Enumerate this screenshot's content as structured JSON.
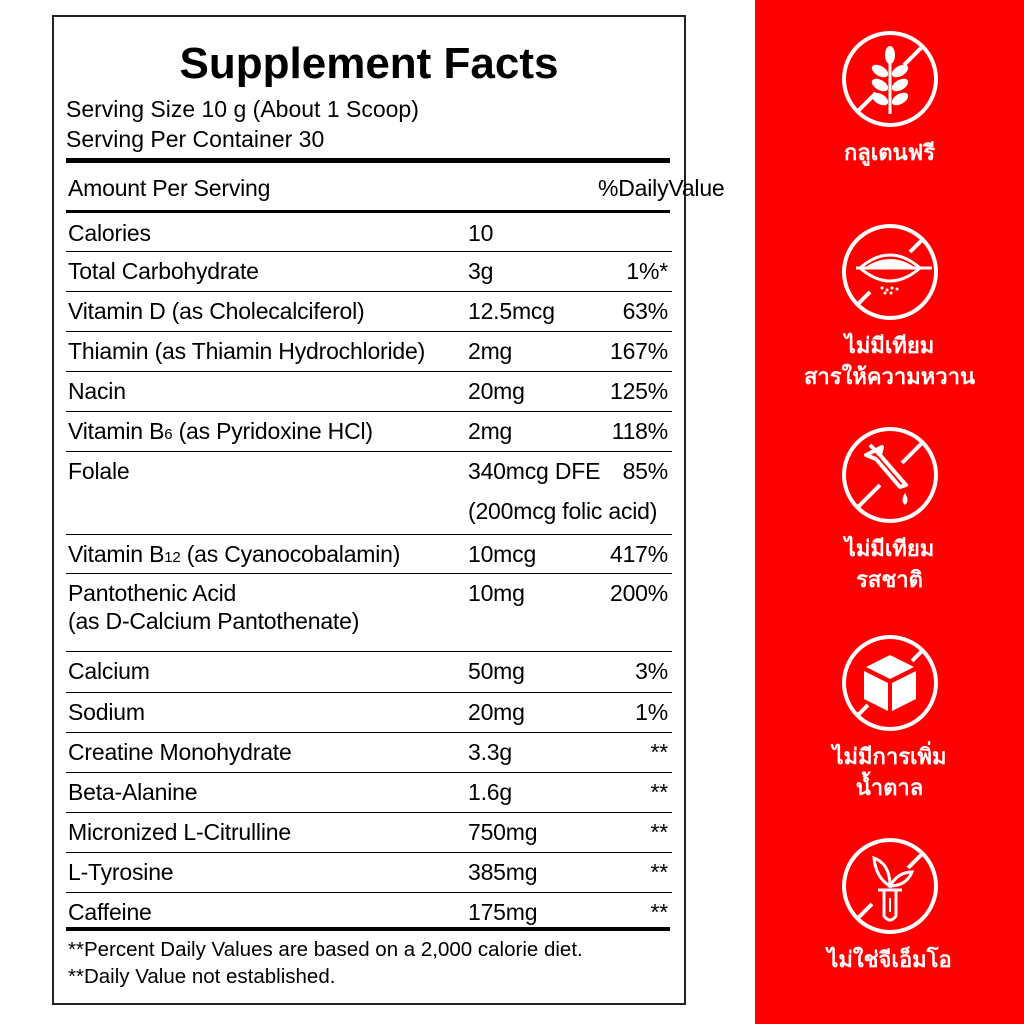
{
  "label": {
    "title": "Supplement Facts",
    "serving_size": "Serving Size 10 g (About 1 Scoop)",
    "servings_per_container": "Serving Per Container 30",
    "header": {
      "amount": "Amount Per Serving",
      "dv": "%DailyValue"
    },
    "rows": [
      {
        "name": "Calories",
        "amount": "10",
        "dv": ""
      },
      {
        "name": "Total Carbohydrate",
        "amount": "3g",
        "dv": "1%*"
      },
      {
        "name": "Vitamin D (as Cholecalciferol)",
        "amount": "12.5mcg",
        "dv": "63%"
      },
      {
        "name": "Thiamin (as Thiamin Hydrochloride)",
        "amount": "2mg",
        "dv": "167%"
      },
      {
        "name": "Nacin",
        "amount": "20mg",
        "dv": "125%"
      },
      {
        "name_pre": "Vitamin B",
        "name_sub": "6",
        "name_post": " (as Pyridoxine HCl)",
        "amount": "2mg",
        "dv": "118%"
      },
      {
        "name": "Folale",
        "amount": "340mcg DFE",
        "dv": "85%",
        "note": "(200mcg folic acid)"
      },
      {
        "name_pre": "Vitamin B",
        "name_sub": "12",
        "name_post": " (as Cyanocobalamin)",
        "amount": "10mcg",
        "dv": "417%"
      },
      {
        "name": "Pantothenic Acid",
        "name2": "(as D-Calcium Pantothenate)",
        "amount": "10mg",
        "dv": "200%"
      },
      {
        "name": "Calcium",
        "amount": "50mg",
        "dv": "3%"
      },
      {
        "name": "Sodium",
        "amount": "20mg",
        "dv": "1%"
      },
      {
        "name": "Creatine Monohydrate",
        "amount": "3.3g",
        "dv": "**"
      },
      {
        "name": "Beta-Alanine",
        "amount": "1.6g",
        "dv": "**"
      },
      {
        "name": "Micronized L-Citrulline",
        "amount": "750mg",
        "dv": "**"
      },
      {
        "name": "L-Tyrosine",
        "amount": "385mg",
        "dv": "**"
      },
      {
        "name": "Caffeine",
        "amount": "175mg",
        "dv": "**"
      }
    ],
    "footnote1": "**Percent Daily Values are based on a 2,000 calorie diet.",
    "footnote2": "**Daily Value not established."
  },
  "panel": {
    "color": "#ff0000",
    "badges": [
      {
        "icon": "no-wheat-icon",
        "line1": "กลูเตนฟรี",
        "line2": ""
      },
      {
        "icon": "no-sweetener-icon",
        "line1": "ไม่มีเทียม",
        "line2": "สารให้ความหวาน"
      },
      {
        "icon": "no-dropper-icon",
        "line1": "ไม่มีเทียม",
        "line2": "รสชาติ"
      },
      {
        "icon": "no-sugar-cube-icon",
        "line1": "ไม่มีการเพิ่ม",
        "line2": "น้ำตาล"
      },
      {
        "icon": "no-gmo-icon",
        "line1": "ไม่ใช่จีเอ็มโอ",
        "line2": ""
      }
    ]
  }
}
